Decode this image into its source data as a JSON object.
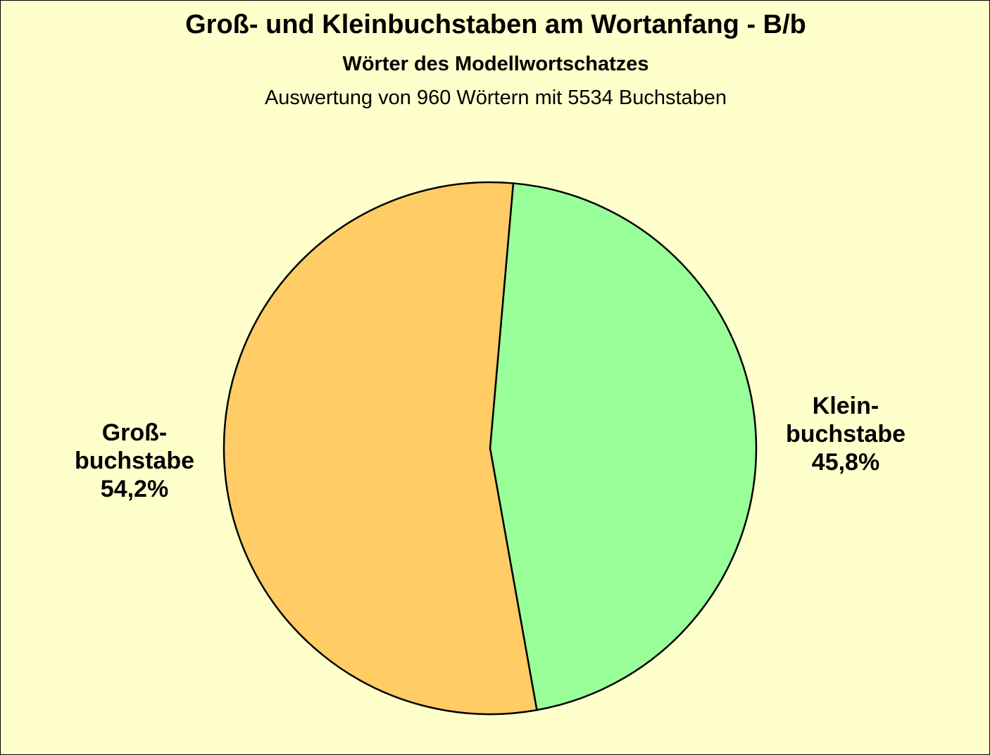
{
  "chart_data": {
    "type": "pie",
    "title": "Groß- und  Kleinbuchstaben am Wortanfang - B/b",
    "subtitle": "Wörter des Modellwortschatzes",
    "note": "Auswertung von 960 Wörtern mit 5534 Buchstaben",
    "slices": [
      {
        "label_lines": [
          "Klein-",
          "buchstabe"
        ],
        "value": 45.8,
        "value_label": "45,8%",
        "color": "#99FF99"
      },
      {
        "label_lines": [
          "Groß-",
          "buchstabe"
        ],
        "value": 54.2,
        "value_label": "54,2%",
        "color": "#FFCC66"
      }
    ],
    "background_color": "#FFFFCC",
    "legend": "none",
    "grid": false
  }
}
